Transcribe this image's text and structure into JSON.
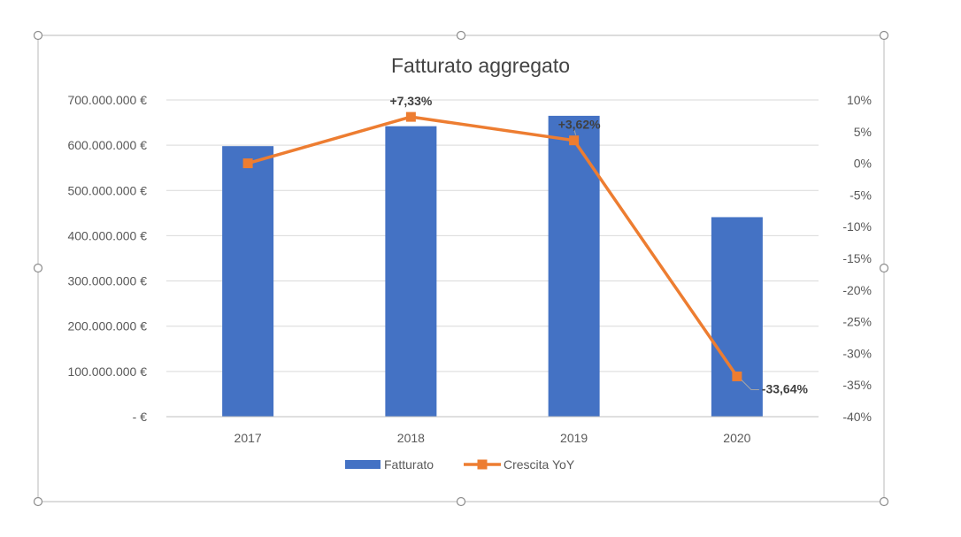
{
  "chart_data": {
    "type": "bar+line",
    "title": "Fatturato aggregato",
    "categories": [
      "2017",
      "2018",
      "2019",
      "2020"
    ],
    "series": [
      {
        "name": "Fatturato",
        "type": "bar",
        "axis": "left",
        "color": "#4472C4",
        "values": [
          598000000,
          642000000,
          665000000,
          441000000
        ]
      },
      {
        "name": "Crescita YoY",
        "type": "line",
        "axis": "right",
        "color": "#ED7D31",
        "marker": "square",
        "values": [
          0,
          7.33,
          3.62,
          -33.64
        ],
        "data_labels": [
          "",
          "+7,33%",
          "+3,62%",
          "-33,64%"
        ]
      }
    ],
    "y_left": {
      "ylim": [
        0,
        700000000
      ],
      "ticks": [
        0,
        100000000,
        200000000,
        300000000,
        400000000,
        500000000,
        600000000,
        700000000
      ],
      "tick_labels": [
        "-  €",
        "100.000.000 €",
        "200.000.000 €",
        "300.000.000 €",
        "400.000.000 €",
        "500.000.000 €",
        "600.000.000 €",
        "700.000.000 €"
      ]
    },
    "y_right": {
      "ylim": [
        -40,
        10
      ],
      "ticks": [
        -40,
        -35,
        -30,
        -25,
        -20,
        -15,
        -10,
        -5,
        0,
        5,
        10
      ],
      "tick_labels": [
        "-40%",
        "-35%",
        "-30%",
        "-25%",
        "-20%",
        "-15%",
        "-10%",
        "-5%",
        "0%",
        "5%",
        "10%"
      ]
    },
    "grid": true,
    "legend": "bottom"
  }
}
